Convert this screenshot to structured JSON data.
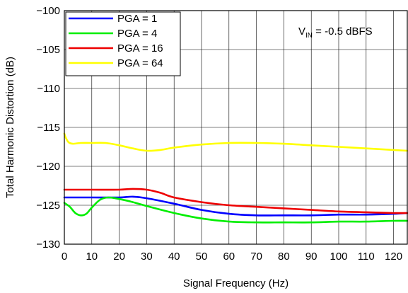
{
  "chart_data": {
    "type": "line",
    "xlabel": "Signal Frequency (Hz)",
    "ylabel": "Total Harmonic Distortion (dB)",
    "xlim": [
      0,
      125
    ],
    "ylim": [
      -130,
      -100
    ],
    "xticks": [
      0,
      10,
      20,
      30,
      40,
      50,
      60,
      70,
      80,
      90,
      100,
      110,
      120
    ],
    "yticks": [
      -130,
      -125,
      -120,
      -115,
      -110,
      -105,
      -100
    ],
    "xtick_labels": [
      "0",
      "10",
      "20",
      "30",
      "40",
      "50",
      "60",
      "70",
      "80",
      "90",
      "100",
      "110",
      "120"
    ],
    "ytick_labels": [
      "−130",
      "−125",
      "−120",
      "−115",
      "−110",
      "−105",
      "−100"
    ],
    "grid": true,
    "legend_position": "top-left",
    "annotation": {
      "main": "V",
      "sub": "IN",
      "rest": " =  -0.5 dBFS"
    },
    "series": [
      {
        "name": "PGA = 1",
        "color": "#0000ff",
        "x": [
          0,
          10,
          20,
          25,
          30,
          40,
          50,
          60,
          70,
          80,
          90,
          100,
          110,
          120,
          125
        ],
        "y": [
          -124,
          -124,
          -124,
          -123.9,
          -124.1,
          -124.8,
          -125.6,
          -126.1,
          -126.3,
          -126.3,
          -126.3,
          -126.2,
          -126.2,
          -126.1,
          -126
        ]
      },
      {
        "name": "PGA = 4",
        "color": "#00ee00",
        "x": [
          0,
          2,
          4,
          6,
          8,
          10,
          13,
          16,
          20,
          25,
          30,
          40,
          50,
          60,
          70,
          80,
          90,
          100,
          110,
          120,
          125
        ],
        "y": [
          -124.7,
          -125.2,
          -126,
          -126.3,
          -126.1,
          -125.3,
          -124.3,
          -124,
          -124.2,
          -124.6,
          -125.1,
          -126,
          -126.7,
          -127.1,
          -127.2,
          -127.2,
          -127.2,
          -127.1,
          -127.1,
          -127,
          -127
        ]
      },
      {
        "name": "PGA = 16",
        "color": "#ee0000",
        "x": [
          0,
          10,
          20,
          25,
          30,
          35,
          40,
          50,
          60,
          70,
          80,
          90,
          100,
          110,
          120,
          125
        ],
        "y": [
          -123,
          -123,
          -123,
          -122.9,
          -123,
          -123.4,
          -124,
          -124.6,
          -125,
          -125.2,
          -125.4,
          -125.6,
          -125.8,
          -125.9,
          -126,
          -126
        ]
      },
      {
        "name": "PGA = 64",
        "color": "#ffff00",
        "x": [
          0,
          0.5,
          1.5,
          3,
          6,
          10,
          15,
          20,
          25,
          30,
          35,
          40,
          50,
          60,
          70,
          80,
          90,
          100,
          110,
          120,
          125
        ],
        "y": [
          -115.8,
          -116.3,
          -116.9,
          -117.1,
          -117,
          -117,
          -117,
          -117.3,
          -117.7,
          -118,
          -117.9,
          -117.6,
          -117.2,
          -117,
          -117,
          -117.1,
          -117.3,
          -117.5,
          -117.7,
          -117.9,
          -118
        ]
      }
    ]
  }
}
